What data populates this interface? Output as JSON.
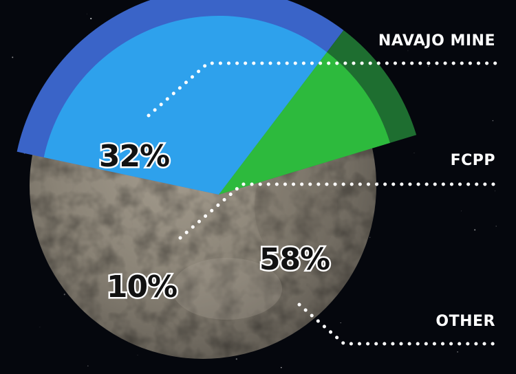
{
  "chart_data": {
    "type": "pie",
    "slices": [
      {
        "label": "NAVAJO MINE",
        "value": 32,
        "value_label": "32%",
        "color": "#2ea7ef",
        "ring_color": "#3a64c8"
      },
      {
        "label": "FCPP",
        "value": 10,
        "value_label": "10%",
        "color": "#2fc23f",
        "ring_color": "#1e6e30"
      },
      {
        "label": "OTHER",
        "value": 58,
        "value_label": "58%",
        "color": "#8c8578"
      }
    ]
  }
}
